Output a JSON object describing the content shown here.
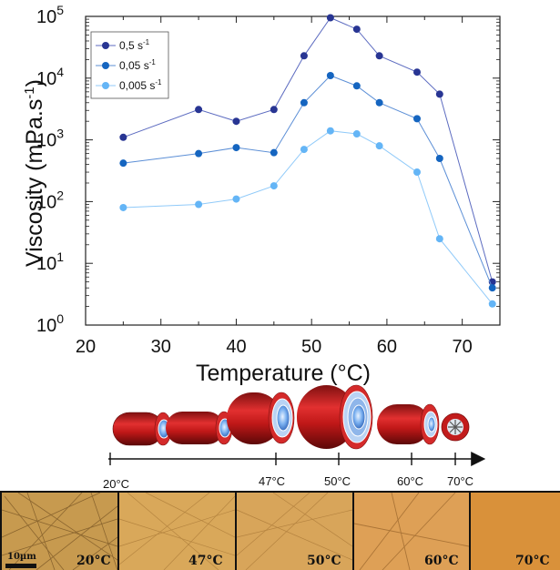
{
  "chart_data": {
    "type": "line",
    "xlabel": "Temperature (°C)",
    "ylabel": "Viscosity (mPa.s",
    "ylabel_sup": "-1",
    "ylabel_end": ")",
    "xlim": [
      20,
      75
    ],
    "ylim": [
      1,
      100000
    ],
    "yscale": "log",
    "x_ticks": [
      "20",
      "30",
      "40",
      "50",
      "60",
      "70"
    ],
    "y_ticks": [
      {
        "base": "10",
        "exp": "0"
      },
      {
        "base": "10",
        "exp": "1"
      },
      {
        "base": "10",
        "exp": "2"
      },
      {
        "base": "10",
        "exp": "3"
      },
      {
        "base": "10",
        "exp": "4"
      },
      {
        "base": "10",
        "exp": "5"
      }
    ],
    "legend_position": "top-left",
    "series": [
      {
        "name": "0,5 s",
        "name_sup": "-1",
        "color": "#283593",
        "line_color": "#5c6bc0",
        "x": [
          25,
          35,
          40,
          45,
          49,
          52.5,
          56,
          59,
          64,
          67,
          74
        ],
        "values": [
          1100,
          3100,
          2000,
          3100,
          23000,
          95000,
          62000,
          23000,
          12500,
          5500,
          5
        ]
      },
      {
        "name": "0,05 s",
        "name_sup": "-1",
        "color": "#1565c0",
        "line_color": "#5c8fd6",
        "x": [
          25,
          35,
          40,
          45,
          49,
          52.5,
          56,
          59,
          64,
          67,
          74
        ],
        "values": [
          420,
          600,
          750,
          620,
          4000,
          11000,
          7500,
          4000,
          2200,
          500,
          4
        ]
      },
      {
        "name": "0,005 s",
        "name_sup": "-1",
        "color": "#64b5f6",
        "line_color": "#90caf9",
        "x": [
          25,
          35,
          40,
          45,
          49,
          52.5,
          56,
          59,
          64,
          67,
          74
        ],
        "values": [
          80,
          90,
          110,
          180,
          700,
          1400,
          1250,
          800,
          300,
          25,
          2.2
        ]
      }
    ]
  },
  "timeline": {
    "labels": [
      "20°C",
      "47°C",
      "50°C",
      "60°C",
      "70°C"
    ]
  },
  "micrographs": {
    "scale_bar": "10µm",
    "panels": [
      {
        "label": "20°C",
        "color": "#c79a4f"
      },
      {
        "label": "47°C",
        "color": "#d9a85a"
      },
      {
        "label": "50°C",
        "color": "#d8a55a"
      },
      {
        "label": "60°C",
        "color": "#dea056"
      },
      {
        "label": "70°C",
        "color": "#d9913a"
      }
    ]
  }
}
